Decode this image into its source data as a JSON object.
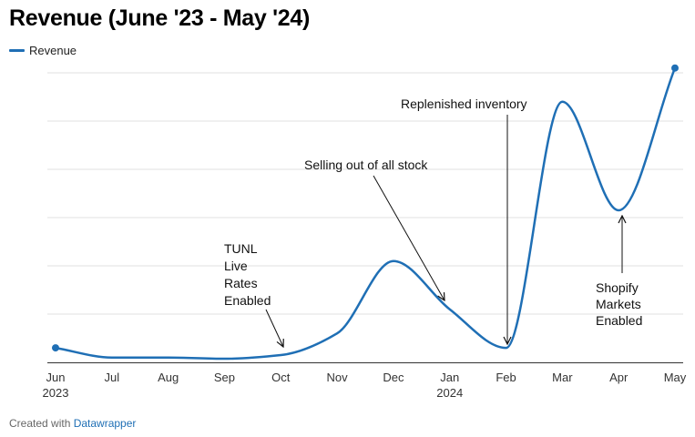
{
  "chart_data": {
    "type": "line",
    "title": "Revenue (June '23 - May '24)",
    "series": [
      {
        "name": "Revenue",
        "color": "#1f6fb5",
        "values": [
          6,
          2,
          2,
          1.5,
          3,
          12,
          42,
          22,
          6,
          108,
          63,
          122
        ]
      }
    ],
    "x": [
      "Jun",
      "Jul",
      "Aug",
      "Sep",
      "Oct",
      "Nov",
      "Dec",
      "Jan",
      "Feb",
      "Mar",
      "Apr",
      "May"
    ],
    "x_year_labels": {
      "0": "2023",
      "7": "2024"
    },
    "ylim": [
      0,
      120
    ],
    "grid": true,
    "legend": "top-left",
    "annotations": [
      {
        "lines": [
          "TUNL",
          "Live",
          "Rates",
          "Enabled"
        ],
        "x_index": 4
      },
      {
        "lines": [
          "Selling out of all stock"
        ],
        "x_index": 7
      },
      {
        "lines": [
          "Replenished inventory"
        ],
        "x_index": 8
      },
      {
        "lines": [
          "Shopify",
          "Markets",
          "Enabled"
        ],
        "x_index": 10
      }
    ]
  },
  "legend": {
    "label": "Revenue"
  },
  "footer": {
    "prefix": "Created with ",
    "link": "Datawrapper"
  }
}
